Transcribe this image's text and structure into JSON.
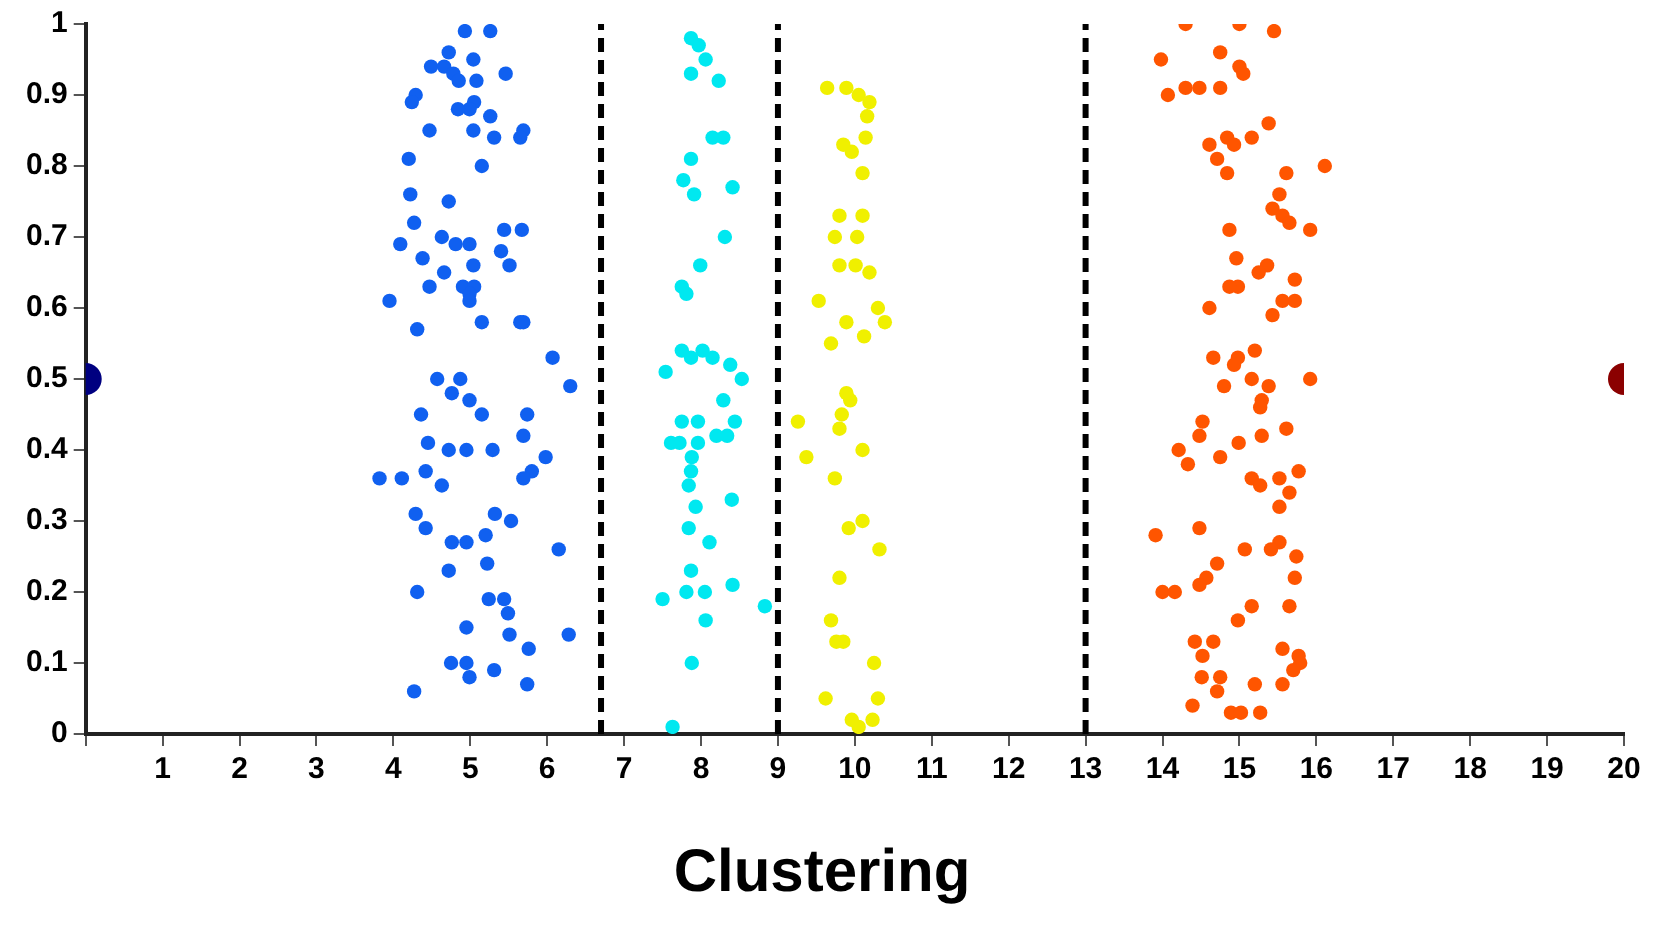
{
  "chart_data": {
    "type": "scatter",
    "title": "Clustering",
    "marker": "circle",
    "grid": false,
    "legend": false,
    "xlim": [
      0,
      20
    ],
    "xticks": [
      {
        "value": 0,
        "label": null
      },
      1,
      2,
      3,
      4,
      5,
      6,
      7,
      8,
      9,
      10,
      11,
      12,
      13,
      14,
      15,
      16,
      17,
      18,
      19,
      20
    ],
    "ylim": [
      0,
      1
    ],
    "yticks": [
      0,
      0.1,
      0.2,
      0.3,
      0.4,
      0.5,
      0.6,
      0.7,
      0.8,
      0.9,
      1
    ],
    "ref_lines": [
      {
        "axis": "x",
        "value": 6.7,
        "color": "#000000",
        "line_style": "dashed"
      },
      {
        "axis": "x",
        "value": 9,
        "color": "#000000",
        "line_style": "dashed"
      },
      {
        "axis": "x",
        "value": 13,
        "color": "#000000",
        "line_style": "dashed"
      }
    ],
    "series": [
      {
        "color": "#000080",
        "x": [
          0
        ],
        "values": [
          0.5
        ]
      },
      {
        "color": "#1060f0",
        "x": [
          4.93,
          5.26,
          4.72,
          5.04,
          4.49,
          4.66,
          4.78,
          5.46,
          4.85,
          5.08,
          4.29,
          4.24,
          5.05,
          4.99,
          4.84,
          5.26,
          4.47,
          5.04,
          5.69,
          5.65,
          5.31,
          4.2,
          5.15,
          4.22,
          4.72,
          4.27,
          5.44,
          5.67,
          4.09,
          4.63,
          4.81,
          4.99,
          4.38,
          5.4,
          5.51,
          5.04,
          4.66,
          4.47,
          4.905,
          5.05,
          3.95,
          4.99,
          4.99,
          5.15,
          5.69,
          5.65,
          4.31,
          6.07,
          4.57,
          4.87,
          4.76,
          4.99,
          6.3,
          4.36,
          5.15,
          5.74,
          5.69,
          4.45,
          4.72,
          4.95,
          5.29,
          5.98,
          4.11,
          4.42,
          4.63,
          5.8,
          5.69,
          3.82,
          4.29,
          4.42,
          5.32,
          5.53,
          4.76,
          4.95,
          5.2,
          6.15,
          4.72,
          5.22,
          4.31,
          5.24,
          5.44,
          5.49,
          4.95,
          5.51,
          6.28,
          5.76,
          4.75,
          4.95,
          4.99,
          5.31,
          5.74,
          4.27
        ],
        "values": [
          0.99,
          0.99,
          0.96,
          0.95,
          0.94,
          0.94,
          0.93,
          0.93,
          0.92,
          0.92,
          0.9,
          0.89,
          0.89,
          0.88,
          0.88,
          0.87,
          0.85,
          0.85,
          0.85,
          0.84,
          0.84,
          0.81,
          0.8,
          0.76,
          0.75,
          0.72,
          0.71,
          0.71,
          0.69,
          0.7,
          0.69,
          0.69,
          0.67,
          0.68,
          0.66,
          0.66,
          0.65,
          0.63,
          0.63,
          0.63,
          0.61,
          0.62,
          0.61,
          0.58,
          0.58,
          0.58,
          0.57,
          0.53,
          0.5,
          0.5,
          0.48,
          0.47,
          0.49,
          0.45,
          0.45,
          0.45,
          0.42,
          0.41,
          0.4,
          0.4,
          0.4,
          0.39,
          0.36,
          0.37,
          0.35,
          0.37,
          0.36,
          0.36,
          0.31,
          0.29,
          0.31,
          0.3,
          0.27,
          0.27,
          0.28,
          0.26,
          0.23,
          0.24,
          0.2,
          0.19,
          0.19,
          0.17,
          0.15,
          0.14,
          0.14,
          0.12,
          0.1,
          0.1,
          0.08,
          0.09,
          0.07,
          0.06
        ]
      },
      {
        "color": "#00e8f0",
        "x": [
          7.87,
          7.97,
          8.06,
          7.87,
          8.23,
          8.15,
          8.29,
          7.87,
          7.77,
          8.41,
          7.91,
          8.31,
          7.99,
          7.75,
          7.81,
          7.75,
          7.87,
          8.02,
          8.15,
          8.38,
          7.54,
          8.53,
          8.29,
          7.75,
          7.96,
          8.44,
          8.34,
          8.2,
          7.61,
          7.72,
          7.96,
          7.88,
          7.87,
          7.84,
          8.4,
          7.93,
          7.84,
          8.11,
          7.87,
          7.5,
          7.81,
          8.05,
          8.41,
          8.06,
          8.83,
          7.88,
          7.63
        ],
        "values": [
          0.98,
          0.97,
          0.95,
          0.93,
          0.92,
          0.84,
          0.84,
          0.81,
          0.78,
          0.77,
          0.76,
          0.7,
          0.66,
          0.63,
          0.62,
          0.54,
          0.53,
          0.54,
          0.53,
          0.52,
          0.51,
          0.5,
          0.47,
          0.44,
          0.44,
          0.44,
          0.42,
          0.42,
          0.41,
          0.41,
          0.41,
          0.39,
          0.37,
          0.35,
          0.33,
          0.32,
          0.29,
          0.27,
          0.23,
          0.19,
          0.2,
          0.2,
          0.21,
          0.16,
          0.18,
          0.1,
          0.01
        ]
      },
      {
        "color": "#f0f000",
        "x": [
          9.64,
          9.89,
          10.05,
          10.19,
          10.16,
          10.14,
          9.85,
          9.96,
          10.1,
          10.1,
          9.8,
          9.74,
          10.03,
          9.8,
          10.01,
          10.19,
          9.53,
          10.3,
          9.89,
          10.39,
          9.69,
          10.12,
          9.89,
          9.94,
          9.83,
          9.26,
          9.8,
          10.1,
          9.37,
          9.74,
          10.1,
          9.92,
          10.32,
          9.8,
          9.69,
          9.76,
          9.85,
          10.25,
          9.62,
          10.3,
          9.96,
          10.23,
          10.05
        ],
        "values": [
          0.91,
          0.91,
          0.9,
          0.89,
          0.87,
          0.84,
          0.83,
          0.82,
          0.79,
          0.73,
          0.73,
          0.7,
          0.7,
          0.66,
          0.66,
          0.65,
          0.61,
          0.6,
          0.58,
          0.58,
          0.55,
          0.56,
          0.48,
          0.47,
          0.45,
          0.44,
          0.43,
          0.4,
          0.39,
          0.36,
          0.3,
          0.29,
          0.26,
          0.22,
          0.16,
          0.13,
          0.13,
          0.1,
          0.05,
          0.05,
          0.02,
          0.02,
          0.01
        ]
      },
      {
        "color": "#ff5500",
        "x": [
          14.3,
          15,
          15.45,
          13.98,
          14.75,
          15,
          15.05,
          14.07,
          14.3,
          14.48,
          14.75,
          15.38,
          14.61,
          14.84,
          15.16,
          14.93,
          14.71,
          16.11,
          15.61,
          14.84,
          15.52,
          15.43,
          15.56,
          15.65,
          15.92,
          14.87,
          14.96,
          15.36,
          15.25,
          15.72,
          14.98,
          14.87,
          15.56,
          15.72,
          14.61,
          15.43,
          15.2,
          14.66,
          14.98,
          14.93,
          14.8,
          15.16,
          15.38,
          15.92,
          15.29,
          15.27,
          14.52,
          15.61,
          14.48,
          14.99,
          15.29,
          14.21,
          14.33,
          14.75,
          15.16,
          15.27,
          15.52,
          15.77,
          15.65,
          15.52,
          14.48,
          13.91,
          15.52,
          14.71,
          15.07,
          15.41,
          15.74,
          14.57,
          14.48,
          14,
          14.16,
          15.72,
          15.16,
          14.98,
          15.65,
          14.42,
          14.66,
          14.52,
          15.56,
          15.77,
          15.79,
          15.7,
          15.56,
          14.51,
          14.75,
          14.71,
          15.2,
          14.39,
          14.89,
          15.02,
          15.27
        ],
        "values": [
          1,
          1,
          0.99,
          0.95,
          0.96,
          0.94,
          0.93,
          0.9,
          0.91,
          0.91,
          0.91,
          0.86,
          0.83,
          0.84,
          0.84,
          0.83,
          0.81,
          0.8,
          0.79,
          0.79,
          0.76,
          0.74,
          0.73,
          0.72,
          0.71,
          0.71,
          0.67,
          0.66,
          0.65,
          0.64,
          0.63,
          0.63,
          0.61,
          0.61,
          0.6,
          0.59,
          0.54,
          0.53,
          0.53,
          0.52,
          0.49,
          0.5,
          0.49,
          0.5,
          0.47,
          0.46,
          0.44,
          0.43,
          0.42,
          0.41,
          0.42,
          0.4,
          0.38,
          0.39,
          0.36,
          0.35,
          0.36,
          0.37,
          0.34,
          0.32,
          0.29,
          0.28,
          0.27,
          0.24,
          0.26,
          0.26,
          0.25,
          0.22,
          0.21,
          0.2,
          0.2,
          0.22,
          0.18,
          0.16,
          0.18,
          0.13,
          0.13,
          0.11,
          0.12,
          0.11,
          0.1,
          0.09,
          0.07,
          0.08,
          0.08,
          0.06,
          0.07,
          0.04,
          0.03,
          0.03,
          0.03
        ]
      },
      {
        "color": "#8b0000",
        "x": [
          20
        ],
        "values": [
          0.5
        ]
      }
    ]
  }
}
